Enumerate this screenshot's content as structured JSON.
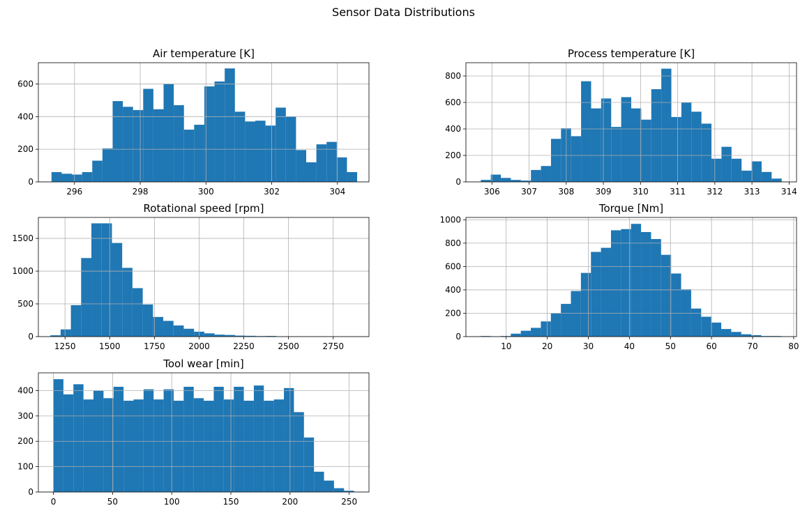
{
  "title": "Sensor Data Distributions",
  "colors": {
    "bar": "#1f77b4",
    "grid": "#b0b0b0",
    "axis": "#000000"
  },
  "chart_data": [
    {
      "type": "bar",
      "title": "Air temperature [K]",
      "grid": true,
      "xlim": [
        294.9,
        304.96
      ],
      "ylim": [
        0,
        730
      ],
      "xticks": [
        296,
        298,
        300,
        302,
        304
      ],
      "yticks": [
        0,
        200,
        400,
        600
      ],
      "bin_start": 295.3,
      "bin_width": 0.31,
      "values": [
        60,
        50,
        45,
        60,
        130,
        205,
        495,
        460,
        440,
        570,
        445,
        600,
        470,
        320,
        350,
        585,
        615,
        695,
        430,
        370,
        375,
        345,
        455,
        400,
        195,
        120,
        230,
        245,
        150,
        60
      ]
    },
    {
      "type": "bar",
      "title": "Process temperature [K]",
      "grid": true,
      "xlim": [
        305.3,
        314.2
      ],
      "ylim": [
        0,
        900
      ],
      "xticks": [
        306,
        307,
        308,
        309,
        310,
        311,
        312,
        313,
        314
      ],
      "yticks": [
        0,
        200,
        400,
        600,
        800
      ],
      "bin_start": 305.7,
      "bin_width": 0.27,
      "values": [
        15,
        55,
        30,
        15,
        10,
        90,
        120,
        325,
        405,
        345,
        760,
        555,
        630,
        415,
        640,
        555,
        470,
        700,
        855,
        490,
        600,
        530,
        440,
        175,
        265,
        175,
        85,
        155,
        75,
        25
      ]
    },
    {
      "type": "bar",
      "title": "Rotational speed [rpm]",
      "grid": true,
      "xlim": [
        1101,
        2950
      ],
      "ylim": [
        0,
        1820
      ],
      "xticks": [
        1250,
        1500,
        1750,
        2000,
        2250,
        2500,
        2750
      ],
      "yticks": [
        0,
        500,
        1000,
        1500
      ],
      "bin_start": 1168,
      "bin_width": 57.4,
      "values": [
        20,
        110,
        480,
        1200,
        1730,
        1730,
        1430,
        1050,
        740,
        490,
        300,
        240,
        170,
        120,
        75,
        50,
        30,
        25,
        15,
        12,
        8,
        10,
        5,
        5,
        5,
        3,
        3,
        2,
        2,
        2
      ]
    },
    {
      "type": "bar",
      "title": "Torque [Nm]",
      "grid": true,
      "xlim": [
        0.2,
        80.7
      ],
      "ylim": [
        0,
        1020
      ],
      "xticks": [
        10,
        20,
        30,
        40,
        50,
        60,
        70,
        80
      ],
      "yticks": [
        0,
        200,
        400,
        600,
        800,
        1000
      ],
      "bin_start": 3.8,
      "bin_width": 2.44,
      "values": [
        5,
        2,
        5,
        25,
        50,
        75,
        130,
        200,
        280,
        390,
        545,
        725,
        760,
        910,
        920,
        965,
        895,
        835,
        700,
        540,
        405,
        240,
        170,
        120,
        65,
        40,
        20,
        12,
        5,
        5
      ]
    },
    {
      "type": "bar",
      "title": "Tool wear [min]",
      "grid": true,
      "xlim": [
        -12.7,
        266.7
      ],
      "ylim": [
        0,
        470
      ],
      "xticks": [
        0,
        50,
        100,
        150,
        200,
        250
      ],
      "yticks": [
        0,
        100,
        200,
        300,
        400
      ],
      "bin_start": 0,
      "bin_width": 8.47,
      "values": [
        445,
        385,
        425,
        365,
        400,
        370,
        415,
        360,
        365,
        405,
        365,
        405,
        360,
        415,
        370,
        360,
        415,
        365,
        415,
        360,
        420,
        360,
        365,
        410,
        315,
        215,
        80,
        45,
        15,
        5
      ]
    }
  ]
}
